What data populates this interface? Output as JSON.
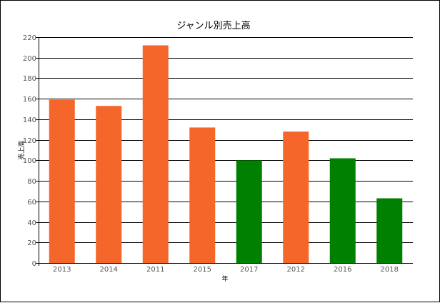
{
  "chart_data": {
    "type": "bar",
    "title": "ジャンル別売上高",
    "xlabel": "年",
    "ylabel": "売上高",
    "categories": [
      "2013",
      "2014",
      "2011",
      "2015",
      "2017",
      "2012",
      "2016",
      "2018"
    ],
    "values": [
      159,
      153,
      212,
      132,
      100,
      128,
      102,
      63
    ],
    "bar_colors": [
      "#f4662a",
      "#f4662a",
      "#f4662a",
      "#f4662a",
      "#008000",
      "#f4662a",
      "#008000",
      "#008000"
    ],
    "ylim": [
      0,
      220
    ],
    "y_ticks": [
      0,
      20,
      40,
      60,
      80,
      100,
      120,
      140,
      160,
      180,
      200,
      220
    ],
    "grid": true,
    "colors": {
      "orange": "#f4662a",
      "green": "#008000",
      "grid": "#000000",
      "tick_text": "#555555"
    }
  }
}
